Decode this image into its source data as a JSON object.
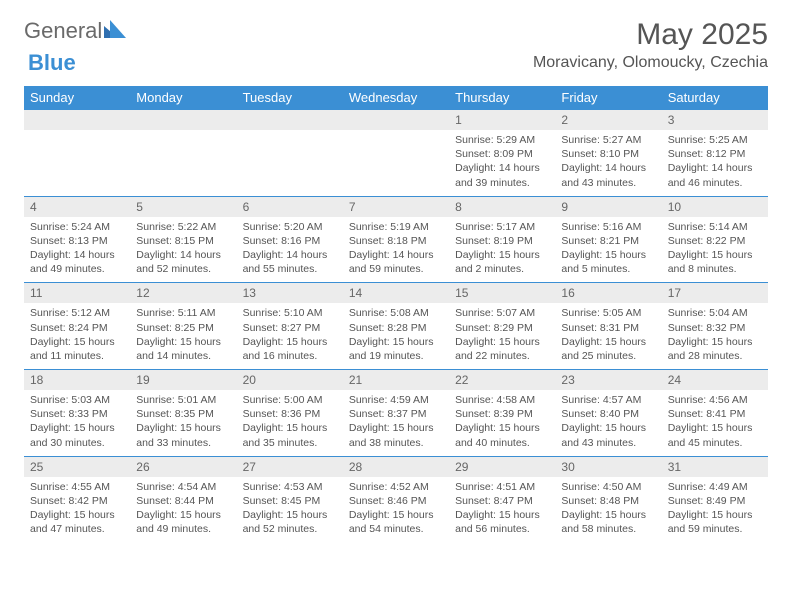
{
  "brand": {
    "part1": "General",
    "part2": "Blue"
  },
  "title": "May 2025",
  "location": "Moravicany, Olomoucky, Czechia",
  "colors": {
    "header_bg": "#3b8fd4",
    "header_text": "#ffffff",
    "daynum_bg": "#ececec",
    "border": "#3b8fd4",
    "text": "#555555"
  },
  "weekdays": [
    "Sunday",
    "Monday",
    "Tuesday",
    "Wednesday",
    "Thursday",
    "Friday",
    "Saturday"
  ],
  "weeks": [
    [
      {
        "n": "",
        "sr": "",
        "ss": "",
        "dl": ""
      },
      {
        "n": "",
        "sr": "",
        "ss": "",
        "dl": ""
      },
      {
        "n": "",
        "sr": "",
        "ss": "",
        "dl": ""
      },
      {
        "n": "",
        "sr": "",
        "ss": "",
        "dl": ""
      },
      {
        "n": "1",
        "sr": "Sunrise: 5:29 AM",
        "ss": "Sunset: 8:09 PM",
        "dl": "Daylight: 14 hours and 39 minutes."
      },
      {
        "n": "2",
        "sr": "Sunrise: 5:27 AM",
        "ss": "Sunset: 8:10 PM",
        "dl": "Daylight: 14 hours and 43 minutes."
      },
      {
        "n": "3",
        "sr": "Sunrise: 5:25 AM",
        "ss": "Sunset: 8:12 PM",
        "dl": "Daylight: 14 hours and 46 minutes."
      }
    ],
    [
      {
        "n": "4",
        "sr": "Sunrise: 5:24 AM",
        "ss": "Sunset: 8:13 PM",
        "dl": "Daylight: 14 hours and 49 minutes."
      },
      {
        "n": "5",
        "sr": "Sunrise: 5:22 AM",
        "ss": "Sunset: 8:15 PM",
        "dl": "Daylight: 14 hours and 52 minutes."
      },
      {
        "n": "6",
        "sr": "Sunrise: 5:20 AM",
        "ss": "Sunset: 8:16 PM",
        "dl": "Daylight: 14 hours and 55 minutes."
      },
      {
        "n": "7",
        "sr": "Sunrise: 5:19 AM",
        "ss": "Sunset: 8:18 PM",
        "dl": "Daylight: 14 hours and 59 minutes."
      },
      {
        "n": "8",
        "sr": "Sunrise: 5:17 AM",
        "ss": "Sunset: 8:19 PM",
        "dl": "Daylight: 15 hours and 2 minutes."
      },
      {
        "n": "9",
        "sr": "Sunrise: 5:16 AM",
        "ss": "Sunset: 8:21 PM",
        "dl": "Daylight: 15 hours and 5 minutes."
      },
      {
        "n": "10",
        "sr": "Sunrise: 5:14 AM",
        "ss": "Sunset: 8:22 PM",
        "dl": "Daylight: 15 hours and 8 minutes."
      }
    ],
    [
      {
        "n": "11",
        "sr": "Sunrise: 5:12 AM",
        "ss": "Sunset: 8:24 PM",
        "dl": "Daylight: 15 hours and 11 minutes."
      },
      {
        "n": "12",
        "sr": "Sunrise: 5:11 AM",
        "ss": "Sunset: 8:25 PM",
        "dl": "Daylight: 15 hours and 14 minutes."
      },
      {
        "n": "13",
        "sr": "Sunrise: 5:10 AM",
        "ss": "Sunset: 8:27 PM",
        "dl": "Daylight: 15 hours and 16 minutes."
      },
      {
        "n": "14",
        "sr": "Sunrise: 5:08 AM",
        "ss": "Sunset: 8:28 PM",
        "dl": "Daylight: 15 hours and 19 minutes."
      },
      {
        "n": "15",
        "sr": "Sunrise: 5:07 AM",
        "ss": "Sunset: 8:29 PM",
        "dl": "Daylight: 15 hours and 22 minutes."
      },
      {
        "n": "16",
        "sr": "Sunrise: 5:05 AM",
        "ss": "Sunset: 8:31 PM",
        "dl": "Daylight: 15 hours and 25 minutes."
      },
      {
        "n": "17",
        "sr": "Sunrise: 5:04 AM",
        "ss": "Sunset: 8:32 PM",
        "dl": "Daylight: 15 hours and 28 minutes."
      }
    ],
    [
      {
        "n": "18",
        "sr": "Sunrise: 5:03 AM",
        "ss": "Sunset: 8:33 PM",
        "dl": "Daylight: 15 hours and 30 minutes."
      },
      {
        "n": "19",
        "sr": "Sunrise: 5:01 AM",
        "ss": "Sunset: 8:35 PM",
        "dl": "Daylight: 15 hours and 33 minutes."
      },
      {
        "n": "20",
        "sr": "Sunrise: 5:00 AM",
        "ss": "Sunset: 8:36 PM",
        "dl": "Daylight: 15 hours and 35 minutes."
      },
      {
        "n": "21",
        "sr": "Sunrise: 4:59 AM",
        "ss": "Sunset: 8:37 PM",
        "dl": "Daylight: 15 hours and 38 minutes."
      },
      {
        "n": "22",
        "sr": "Sunrise: 4:58 AM",
        "ss": "Sunset: 8:39 PM",
        "dl": "Daylight: 15 hours and 40 minutes."
      },
      {
        "n": "23",
        "sr": "Sunrise: 4:57 AM",
        "ss": "Sunset: 8:40 PM",
        "dl": "Daylight: 15 hours and 43 minutes."
      },
      {
        "n": "24",
        "sr": "Sunrise: 4:56 AM",
        "ss": "Sunset: 8:41 PM",
        "dl": "Daylight: 15 hours and 45 minutes."
      }
    ],
    [
      {
        "n": "25",
        "sr": "Sunrise: 4:55 AM",
        "ss": "Sunset: 8:42 PM",
        "dl": "Daylight: 15 hours and 47 minutes."
      },
      {
        "n": "26",
        "sr": "Sunrise: 4:54 AM",
        "ss": "Sunset: 8:44 PM",
        "dl": "Daylight: 15 hours and 49 minutes."
      },
      {
        "n": "27",
        "sr": "Sunrise: 4:53 AM",
        "ss": "Sunset: 8:45 PM",
        "dl": "Daylight: 15 hours and 52 minutes."
      },
      {
        "n": "28",
        "sr": "Sunrise: 4:52 AM",
        "ss": "Sunset: 8:46 PM",
        "dl": "Daylight: 15 hours and 54 minutes."
      },
      {
        "n": "29",
        "sr": "Sunrise: 4:51 AM",
        "ss": "Sunset: 8:47 PM",
        "dl": "Daylight: 15 hours and 56 minutes."
      },
      {
        "n": "30",
        "sr": "Sunrise: 4:50 AM",
        "ss": "Sunset: 8:48 PM",
        "dl": "Daylight: 15 hours and 58 minutes."
      },
      {
        "n": "31",
        "sr": "Sunrise: 4:49 AM",
        "ss": "Sunset: 8:49 PM",
        "dl": "Daylight: 15 hours and 59 minutes."
      }
    ]
  ]
}
